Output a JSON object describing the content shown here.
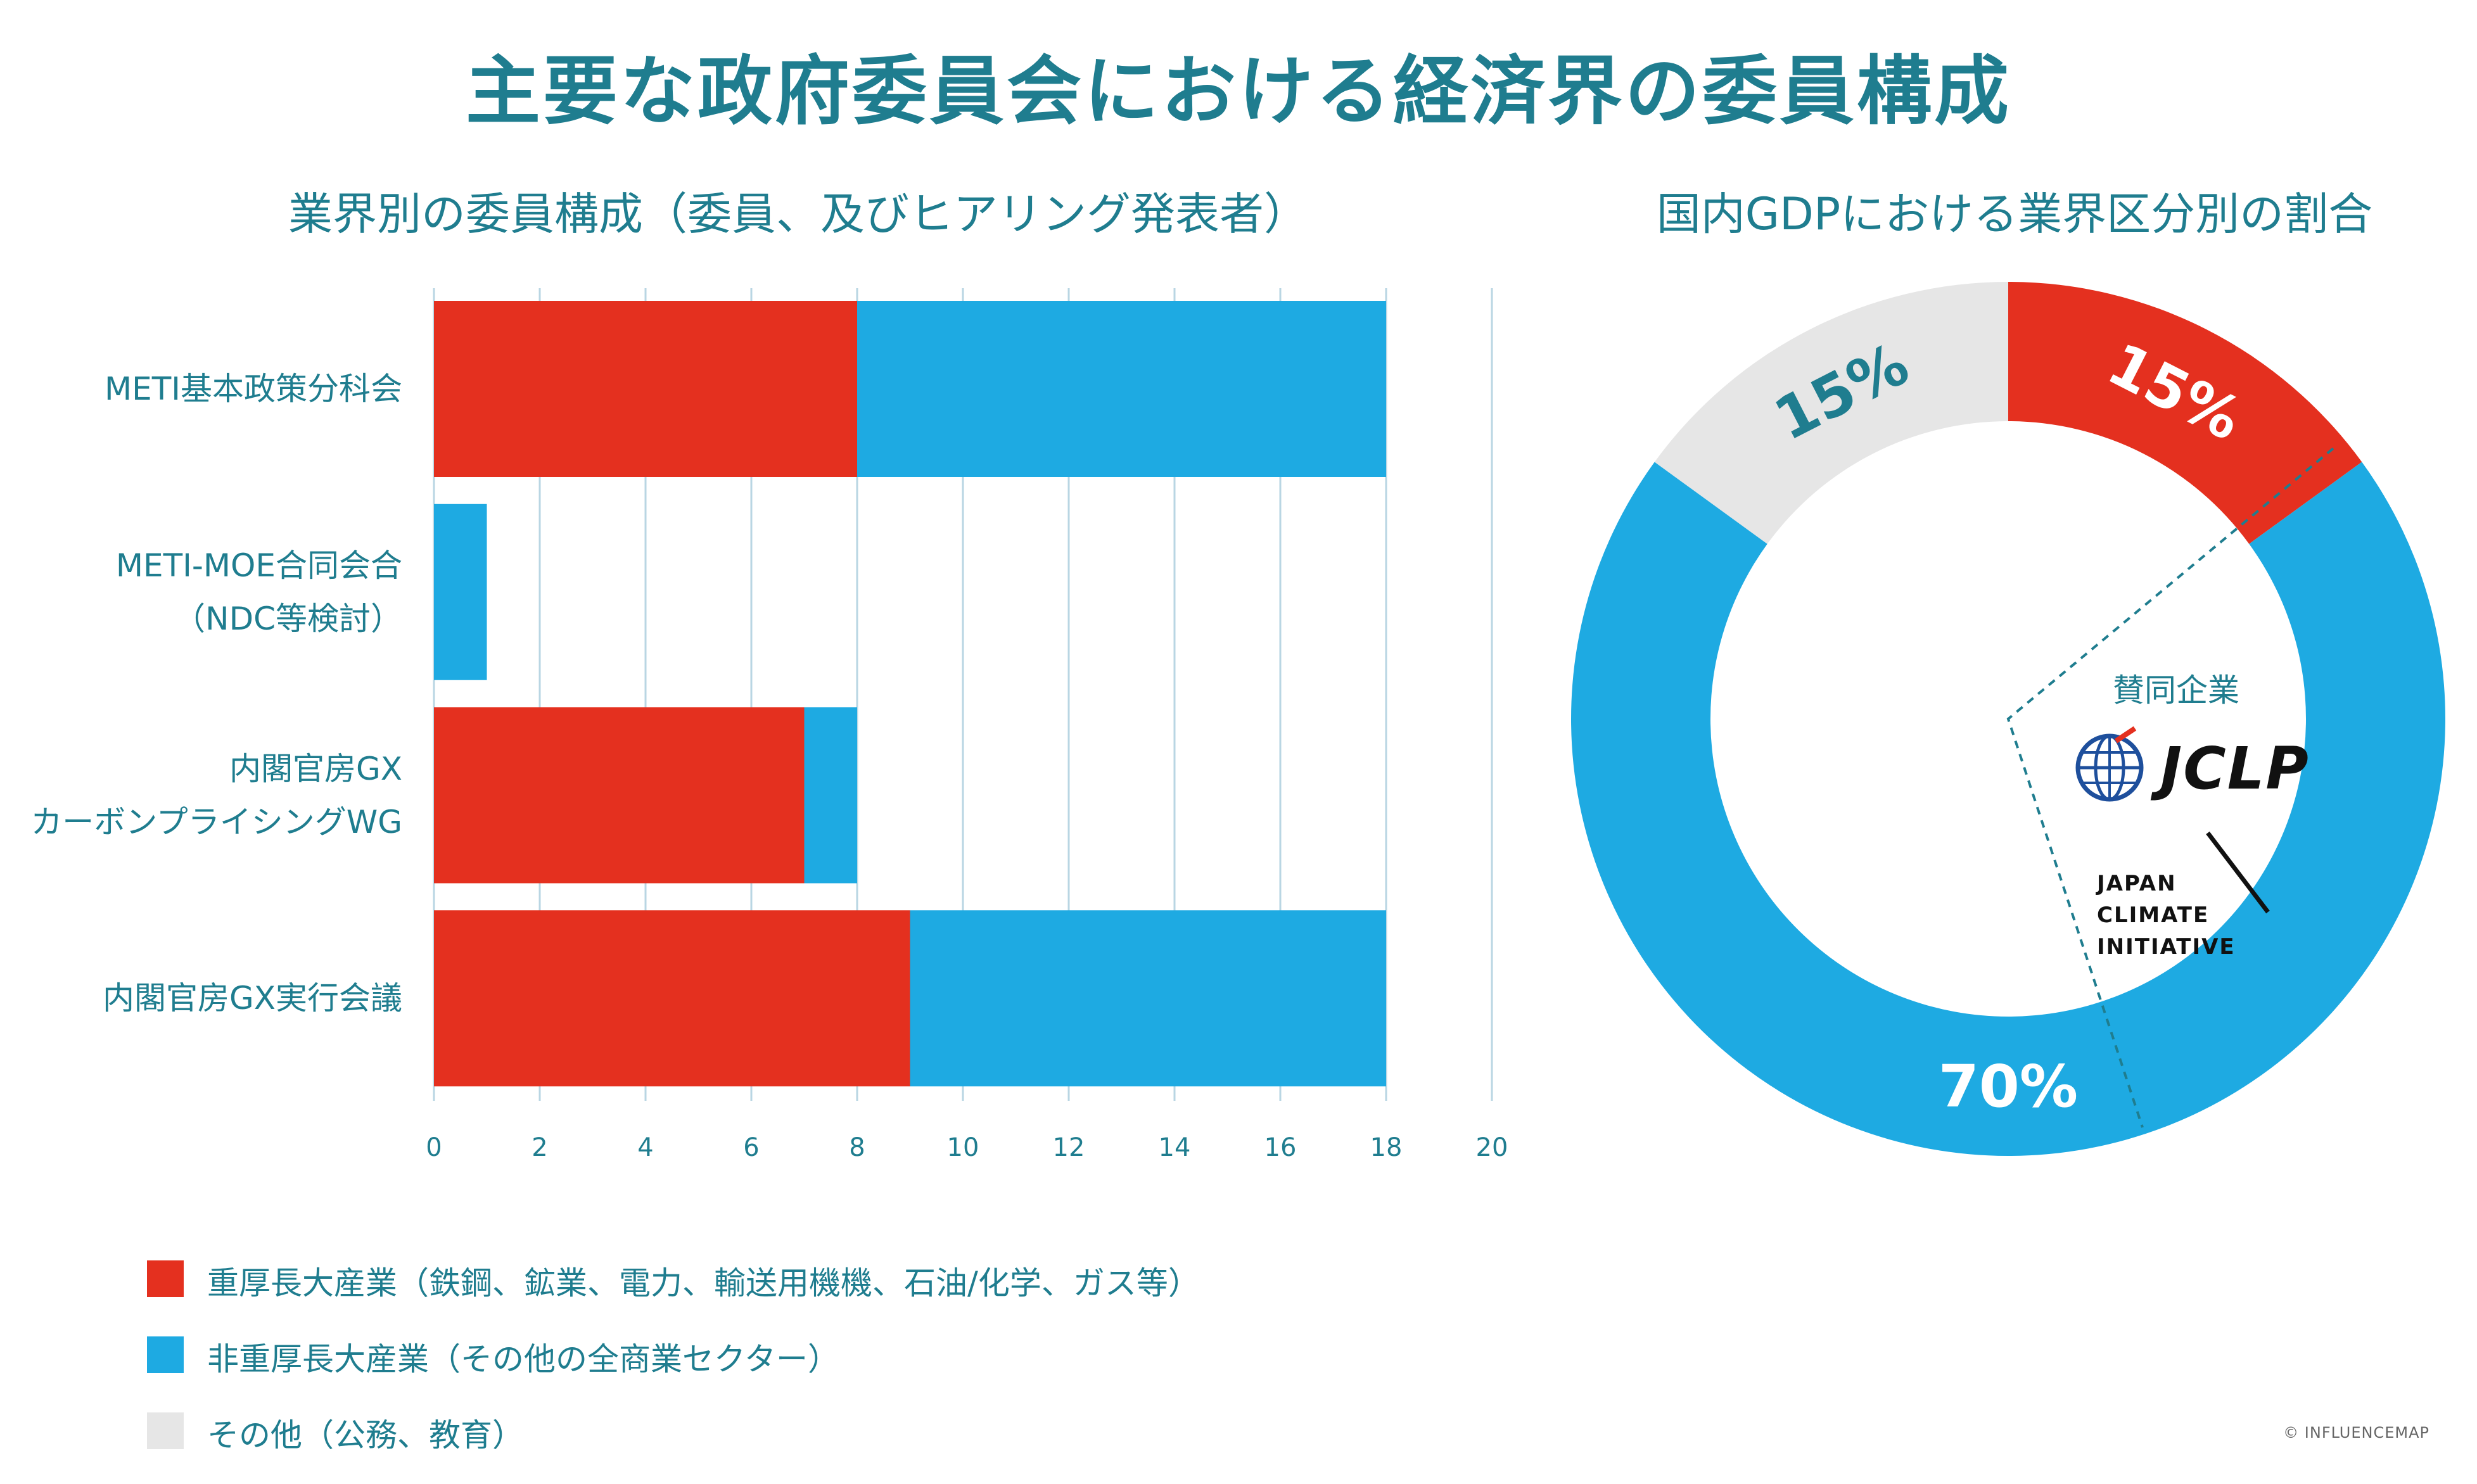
{
  "title": "主要な政府委員会における経済界の委員構成",
  "bar_subtitle": "業界別の委員構成（委員、及びヒアリング発表者）",
  "pie_subtitle": "国内GDPにおける業界区分別の割合",
  "colors": {
    "heavy": "#e4301f",
    "nonheavy": "#1eaae2",
    "other": "#e6e6e6",
    "text": "#1f7d8f",
    "grid": "#b9d6e3"
  },
  "chart_data": [
    {
      "type": "bar",
      "orientation": "horizontal",
      "stacked": true,
      "categories": [
        "METI基本政策分科会",
        "METI-MOE合同会合\n（NDC等検討）",
        "内閣官房GX\nカーボンプライシングWG",
        "内閣官房GX実行会議"
      ],
      "series": [
        {
          "name": "重厚長大産業（鉄鋼、鉱業、電力、輸送用機機、石油/化学、ガス等）",
          "values": [
            8,
            0,
            7,
            9
          ]
        },
        {
          "name": "非重厚長大産業（その他の全商業セクター）",
          "values": [
            10,
            1,
            1,
            9
          ]
        }
      ],
      "xlim": [
        0,
        20
      ],
      "xticks": [
        "0",
        "2",
        "4",
        "6",
        "8",
        "10",
        "12",
        "14",
        "16",
        "18",
        "20"
      ],
      "grid": true,
      "legend_position": "bottom-left"
    },
    {
      "type": "pie",
      "style": "donut",
      "slices": [
        {
          "name": "重厚長大産業（鉄鋼、鉱業、電力、輸送用機機、石油/化学、ガス等）",
          "value": 15,
          "label": "15%"
        },
        {
          "name": "非重厚長大産業（その他の全商業セクター）",
          "value": 70,
          "label": "70%"
        },
        {
          "name": "その他（公務、教育）",
          "value": 15,
          "label": "15%"
        }
      ]
    }
  ],
  "legend": [
    {
      "label": "重厚長大産業（鉄鋼、鉱業、電力、輸送用機機、石油/化学、ガス等）",
      "color": "#e4301f"
    },
    {
      "label": "非重厚長大産業（その他の全商業セクター）",
      "color": "#1eaae2"
    },
    {
      "label": "その他（公務、教育）",
      "color": "#e6e6e6"
    }
  ],
  "supporters": {
    "label": "賛同企業",
    "jclp": "JCLP",
    "jci_lines": [
      "JAPAN",
      "CLIMATE",
      "INITIATIVE"
    ]
  },
  "credit": "© INFLUENCEMAP"
}
